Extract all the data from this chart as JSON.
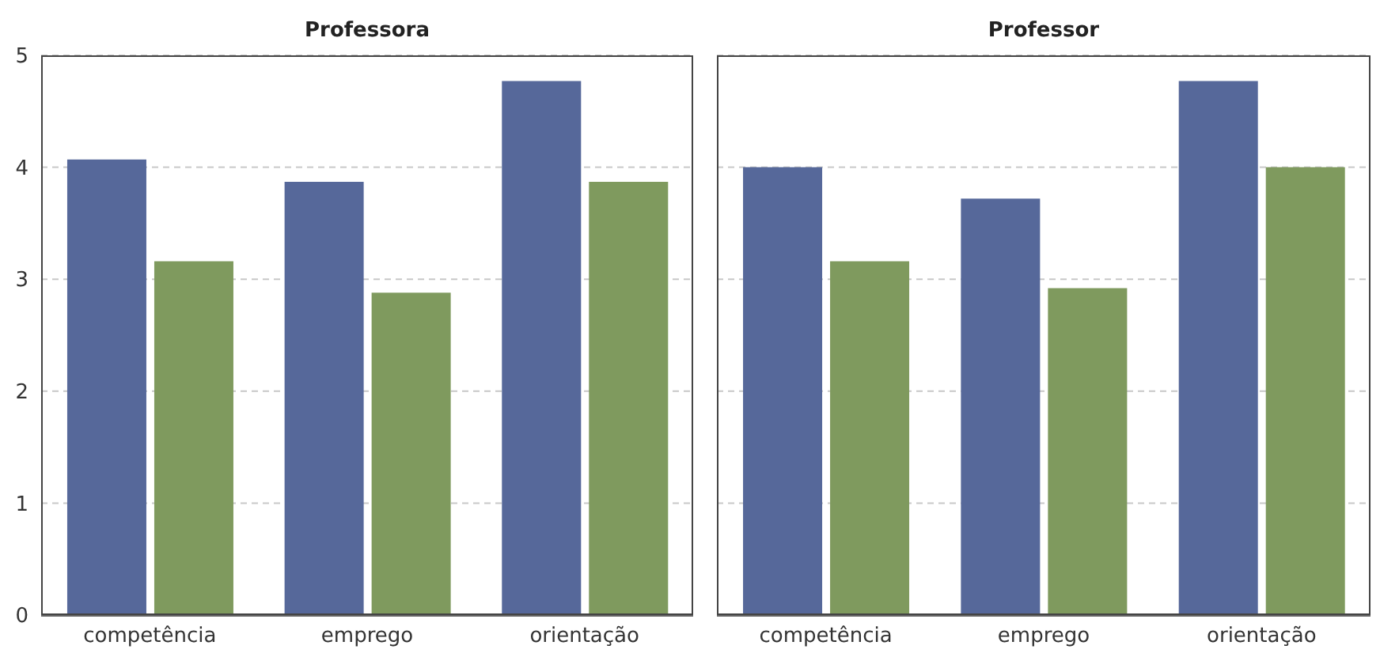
{
  "chart_data": [
    {
      "type": "bar",
      "title": "Professora",
      "categories": [
        "competência",
        "emprego",
        "orientação"
      ],
      "series": [
        {
          "color": "#56689a",
          "values": [
            4.07,
            3.87,
            4.77
          ]
        },
        {
          "color": "#7f9a5e",
          "values": [
            3.16,
            2.88,
            3.87
          ]
        }
      ],
      "ylim": [
        0,
        5
      ],
      "yticks": [
        0,
        1,
        2,
        3,
        4,
        5
      ],
      "grid": "y",
      "legend": false
    },
    {
      "type": "bar",
      "title": "Professor",
      "categories": [
        "competência",
        "emprego",
        "orientação"
      ],
      "series": [
        {
          "color": "#56689a",
          "values": [
            4.0,
            3.72,
            4.77
          ]
        },
        {
          "color": "#7f9a5e",
          "values": [
            3.16,
            2.92,
            4.0
          ]
        }
      ],
      "ylim": [
        0,
        5
      ],
      "yticks": [
        0,
        1,
        2,
        3,
        4,
        5
      ],
      "grid": "y",
      "legend": false,
      "tick_labels": "x"
    }
  ]
}
